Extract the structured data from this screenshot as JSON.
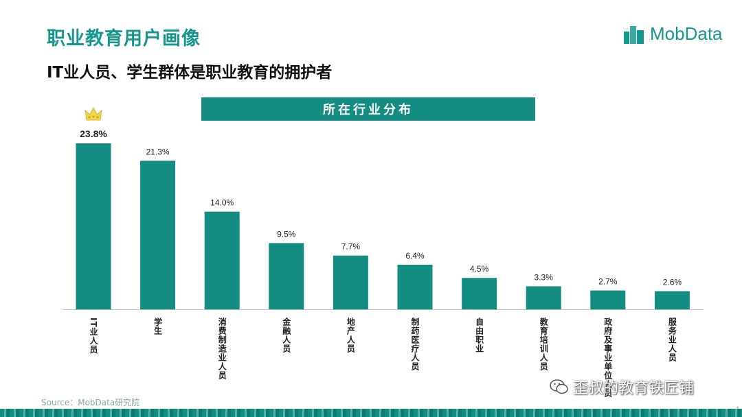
{
  "header": {
    "title": "职业教育用户画像",
    "subtitle": "IT业人员、学生群体是职业教育的拥护者"
  },
  "logo": {
    "text": "MobData",
    "icon": "building-logo-icon"
  },
  "colors": {
    "accent": "#14978d",
    "bar": "#138c82",
    "crown": "#f1d64a"
  },
  "chart_data": {
    "type": "bar",
    "title": "所在行业分布",
    "categories": [
      "IT业人员",
      "学生",
      "消费制造业人员",
      "金融人员",
      "地产人员",
      "制药医疗人员",
      "自由职业",
      "教育培训人员",
      "政府及事业单位人员",
      "服务业人员"
    ],
    "values": [
      23.8,
      21.3,
      14.0,
      9.5,
      7.7,
      6.4,
      4.5,
      3.3,
      2.7,
      2.6
    ],
    "value_labels": [
      "23.8%",
      "21.3%",
      "14.0%",
      "9.5%",
      "7.7%",
      "6.4%",
      "4.5%",
      "3.3%",
      "2.7%",
      "2.6%"
    ],
    "ylim": [
      0,
      25
    ],
    "xlabel": "",
    "ylabel": "",
    "grid": false,
    "highlight": {
      "index": 0,
      "icon": "crown-icon"
    }
  },
  "footer": {
    "source": "Source：MobData研究院",
    "page_number": "4"
  },
  "watermark": {
    "text": "歪叔的教育铁匠铺",
    "icon": "wechat-icon"
  }
}
